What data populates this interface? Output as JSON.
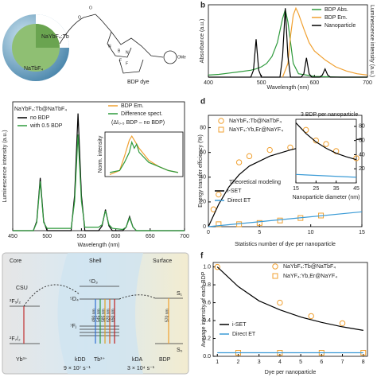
{
  "diagram_a": {
    "core": "NaYbF₄:Tb",
    "shell": "NaTbF₄",
    "dye": "BDP dye",
    "atoms": [
      "O",
      "O",
      "N",
      "N",
      "B",
      "F",
      "F",
      "OMe"
    ]
  },
  "diagram_e": {
    "regions": [
      "Core",
      "Shell",
      "Surface"
    ],
    "csu": "CSU",
    "levels": [
      "²F₅/₂",
      "²F₇/₂",
      "⁵D₃",
      "⁵D₄",
      "⁷Fⱼ",
      "S₁",
      "S₀"
    ],
    "ions": [
      "Yb³⁺",
      "Tb³⁺",
      "BDP"
    ],
    "rates": [
      "kDD",
      "kDA"
    ],
    "rate_values": [
      "9 × 10⁷ s⁻¹",
      "3 × 10⁴ s⁻¹"
    ],
    "lines": [
      "490 nm",
      "545 nm",
      "585 nm",
      "620 nm",
      "650 nm",
      "570 nm"
    ]
  },
  "chart_data": [
    {
      "type": "line",
      "panel": "b",
      "xlabel": "Wavelength (nm)",
      "ylabel": "Absorbance (a.u.)",
      "y2label": "Luminescence intensity (a.u.)",
      "xlim": [
        400,
        700
      ],
      "xticks": [
        400,
        500,
        600,
        700
      ],
      "ylim": [
        0,
        1.05
      ],
      "series": [
        {
          "name": "BDP Abs.",
          "color": "#2e9a3c",
          "type": "line",
          "x": [
            400,
            420,
            440,
            460,
            480,
            490,
            500,
            510,
            520,
            530,
            540,
            545,
            550,
            560,
            570,
            600,
            650,
            700
          ],
          "values": [
            0.03,
            0.04,
            0.06,
            0.08,
            0.1,
            0.12,
            0.15,
            0.2,
            0.3,
            0.5,
            0.85,
            0.98,
            0.8,
            0.2,
            0.05,
            0.01,
            0,
            0
          ]
        },
        {
          "name": "BDP Em.",
          "color": "#f0a030",
          "type": "line",
          "x": [
            540,
            550,
            555,
            560,
            565,
            570,
            580,
            590,
            600,
            620,
            640,
            660,
            680,
            700
          ],
          "values": [
            0,
            0.2,
            0.6,
            0.9,
            1.0,
            0.92,
            0.7,
            0.5,
            0.38,
            0.25,
            0.15,
            0.09,
            0.05,
            0.03
          ]
        },
        {
          "name": "Nanoparticle",
          "color": "#000000",
          "type": "line",
          "x": [
            400,
            480,
            485,
            490,
            495,
            500,
            535,
            540,
            545,
            550,
            555,
            575,
            580,
            585,
            590,
            595,
            610,
            615,
            620,
            625,
            630,
            700
          ],
          "values": [
            0,
            0,
            0.1,
            0.55,
            0.1,
            0,
            0,
            0.3,
            1.0,
            0.3,
            0,
            0,
            0.05,
            0.28,
            0.05,
            0,
            0,
            0.03,
            0.12,
            0.03,
            0,
            0
          ]
        }
      ]
    },
    {
      "type": "line",
      "xlabel": "Wavelength (nm)",
      "ylabel": "Luminescence intensity (a.u.)",
      "legend_title": "NaYbF₄:Tb@NaTbF₄",
      "xlim": [
        450,
        700
      ],
      "xticks": [
        450,
        500,
        550,
        600,
        650,
        700
      ],
      "ylim": [
        0,
        1.1
      ],
      "series": [
        {
          "name": "no BDP",
          "color": "#000000",
          "type": "line",
          "x": [
            450,
            480,
            485,
            490,
            495,
            500,
            535,
            540,
            545,
            550,
            555,
            575,
            580,
            585,
            590,
            595,
            610,
            615,
            620,
            625,
            630,
            700
          ],
          "values": [
            0,
            0,
            0.08,
            0.45,
            0.08,
            0,
            0,
            0.3,
            1.0,
            0.3,
            0,
            0,
            0.04,
            0.18,
            0.04,
            0,
            0,
            0.03,
            0.12,
            0.03,
            0,
            0
          ]
        },
        {
          "name": "with 0.5 BDP",
          "color": "#2e9a3c",
          "type": "line",
          "x": [
            450,
            480,
            485,
            490,
            495,
            500,
            535,
            540,
            545,
            550,
            555,
            575,
            580,
            585,
            590,
            595,
            610,
            615,
            620,
            625,
            630,
            700
          ],
          "values": [
            0,
            0,
            0.07,
            0.42,
            0.07,
            0.02,
            0.02,
            0.25,
            0.82,
            0.25,
            0.03,
            0.03,
            0.05,
            0.17,
            0.05,
            0.02,
            0.01,
            0.03,
            0.11,
            0.03,
            0,
            0
          ]
        }
      ]
    },
    {
      "type": "line",
      "ylabel": "Norm. intensity",
      "annotation": "(ΔI₀.₅ BDP – no BDP)",
      "xlim": [
        510,
        670
      ],
      "ylim": [
        0,
        1.1
      ],
      "series": [
        {
          "name": "BDP Em.",
          "color": "#f0a030",
          "type": "line",
          "x": [
            520,
            540,
            550,
            560,
            565,
            570,
            580,
            600,
            620,
            640,
            660
          ],
          "values": [
            0.05,
            0.15,
            0.5,
            0.9,
            1.0,
            0.9,
            0.7,
            0.4,
            0.25,
            0.15,
            0.1
          ]
        },
        {
          "name": "Difference spect.",
          "color": "#2e9a3c",
          "type": "line",
          "x": [
            520,
            540,
            550,
            560,
            565,
            570,
            575,
            580,
            600,
            620,
            640,
            660
          ],
          "values": [
            0.1,
            0.15,
            0.35,
            0.6,
            0.85,
            0.7,
            0.8,
            0.6,
            0.35,
            0.25,
            0.15,
            0.1
          ]
        }
      ]
    },
    {
      "type": "scatter",
      "panel": "d",
      "xlabel": "Statistics number of dye per nanoparticle",
      "ylabel": "Energy transfer efficiency (%)",
      "annotation": "Theoretical modeling",
      "xlim": [
        0,
        15
      ],
      "xticks": [
        0,
        5,
        10,
        15
      ],
      "ylim": [
        0,
        90
      ],
      "yticks": [
        0,
        20,
        40,
        60,
        80
      ],
      "series": [
        {
          "name": "NaYbF₄:Tb@NaTbF₄",
          "color": "#f0a030",
          "type": "scatter",
          "marker": "circle",
          "x": [
            0.5,
            1,
            3,
            4,
            6,
            8
          ],
          "values": [
            14,
            26,
            52,
            57,
            62,
            64
          ]
        },
        {
          "name": "NaYF₄:Yb,Er@NaYF₄",
          "color": "#f0a030",
          "type": "scatter",
          "marker": "square",
          "x": [
            1,
            3,
            5,
            7,
            9,
            11
          ],
          "values": [
            2,
            2,
            3,
            5,
            7,
            9
          ]
        },
        {
          "name": "i-SET",
          "color": "#000000",
          "type": "line",
          "x": [
            0,
            1,
            2,
            3,
            4,
            6,
            8,
            10,
            12,
            15
          ],
          "values": [
            0,
            18,
            32,
            42,
            49,
            57,
            62,
            66,
            68,
            71
          ]
        },
        {
          "name": "Direct ET",
          "color": "#3b9bd6",
          "type": "line",
          "x": [
            0,
            15
          ],
          "values": [
            0,
            12
          ]
        }
      ]
    },
    {
      "type": "scatter",
      "title": "3 BDP per nanoparticle",
      "xlabel": "Nanoparticle diameter (nm)",
      "xlim": [
        15,
        45
      ],
      "xticks": [
        15,
        25,
        35,
        45
      ],
      "ylim": [
        0,
        90
      ],
      "yticks": [
        20,
        40,
        60,
        80
      ],
      "ytick_side": "right",
      "series": [
        {
          "color": "#f0a030",
          "type": "scatter",
          "marker": "circle",
          "x": [
            20,
            25,
            30,
            35,
            45
          ],
          "values": [
            75,
            60,
            55,
            45,
            35
          ]
        },
        {
          "color": "#000000",
          "type": "line",
          "x": [
            15,
            20,
            25,
            30,
            35,
            40,
            45
          ],
          "values": [
            85,
            70,
            58,
            49,
            42,
            37,
            33
          ]
        },
        {
          "color": "#3b9bd6",
          "type": "line",
          "x": [
            15,
            45
          ],
          "values": [
            12,
            8
          ]
        }
      ]
    },
    {
      "type": "scatter",
      "panel": "f",
      "xlabel": "Dye per nanoparticle",
      "ylabel": "Average intensity of each BDP",
      "xlim": [
        0.8,
        8.2
      ],
      "xticks": [
        1,
        2,
        3,
        4,
        5,
        6,
        7,
        8
      ],
      "ylim": [
        0,
        1.05
      ],
      "yticks": [
        {
          "value": 0,
          "label": "0.0"
        },
        0.2,
        0.4,
        0.6,
        0.8,
        {
          "value": 1,
          "label": "1.0"
        }
      ],
      "series": [
        {
          "name": "NaYbF₄:Tb@NaTbF₄",
          "color": "#f0a030",
          "type": "scatter",
          "marker": "circle",
          "x": [
            1,
            4,
            5.5,
            7
          ],
          "values": [
            1.0,
            0.6,
            0.45,
            0.37
          ]
        },
        {
          "name": "NaYF₄:Yb,Er@NaYF₄",
          "color": "#f0a030",
          "type": "scatter",
          "marker": "square",
          "x": [
            2,
            4,
            6,
            8
          ],
          "values": [
            0.04,
            0.04,
            0.04,
            0.04
          ]
        },
        {
          "name": "i-SET",
          "color": "#000000",
          "type": "line",
          "x": [
            1,
            2,
            3,
            4,
            5,
            6,
            7,
            8
          ],
          "values": [
            1.0,
            0.78,
            0.62,
            0.52,
            0.44,
            0.38,
            0.33,
            0.29
          ]
        },
        {
          "name": "Direct ET",
          "color": "#3b9bd6",
          "type": "line",
          "x": [
            1,
            8
          ],
          "values": [
            0.04,
            0.04
          ]
        }
      ]
    }
  ]
}
